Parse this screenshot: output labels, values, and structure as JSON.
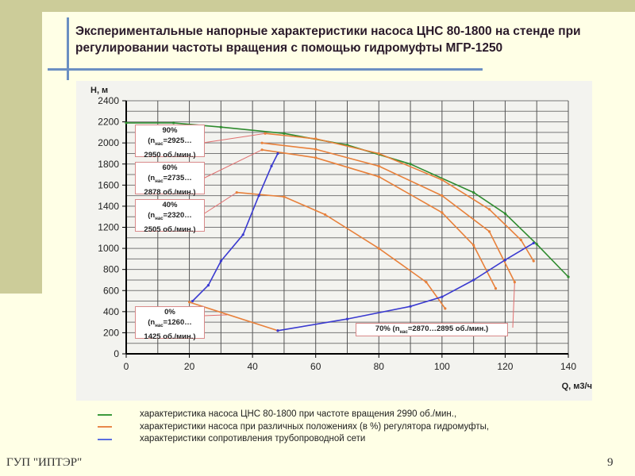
{
  "slide": {
    "title": "Экспериментальные напорные характеристики насоса ЦНС 80-1800 на стенде при регулировании частоты вращения с помощью гидромуфты МГР-1250",
    "footer": "ГУП \"ИПТЭР\"",
    "page_number": "9"
  },
  "legend": [
    {
      "label": "характеристика насоса ЦНС 80-1800 при частоте вращения 2990 об./мин.,",
      "color": "#3c9a3c"
    },
    {
      "label": "характеристики насоса при различных положениях (в %) регулятора гидромуфты,",
      "color": "#e8884a"
    },
    {
      "label": "характеристики сопротивления трубопроводной сети",
      "color": "#5a6ee0"
    }
  ],
  "annotations": [
    {
      "pct": "90%",
      "n": "n",
      "sub": "нас",
      "range1": "=2925…",
      "range2": "2950 об./мин.)"
    },
    {
      "pct": "60%",
      "n": "n",
      "sub": "нас",
      "range1": "=2735…",
      "range2": "2878 об./мин.)"
    },
    {
      "pct": "40%",
      "n": "n",
      "sub": "нас",
      "range1": "=2320…",
      "range2": "2505 об./мин.)"
    },
    {
      "pct": "0%",
      "n": "n",
      "sub": "нас",
      "range1": "=1260…",
      "range2": "1425 об./мин.)"
    },
    {
      "pct": "70%",
      "n": "n",
      "sub": "нас",
      "range1": "=2870…2895 об./мин.)",
      "range2": ""
    }
  ],
  "chart_data": {
    "type": "line",
    "title": "",
    "xlabel": "Q, м3/ч",
    "ylabel": "H, м",
    "xlim": [
      0,
      140
    ],
    "ylim": [
      0,
      2400
    ],
    "xticks": [
      0,
      20,
      40,
      60,
      80,
      100,
      120,
      140
    ],
    "yticks": [
      0,
      200,
      400,
      600,
      800,
      1000,
      1200,
      1400,
      1600,
      1800,
      2000,
      2200,
      2400
    ],
    "grid": true,
    "series": [
      {
        "name": "2990 об./мин.",
        "color": "#2e8b2e",
        "points": [
          [
            0,
            2190
          ],
          [
            15,
            2190
          ],
          [
            30,
            2150
          ],
          [
            50,
            2090
          ],
          [
            70,
            1980
          ],
          [
            90,
            1800
          ],
          [
            110,
            1530
          ],
          [
            120,
            1330
          ],
          [
            130,
            1040
          ],
          [
            140,
            730
          ]
        ]
      },
      {
        "name": "90%",
        "color": "#e8803a",
        "points": [
          [
            44,
            2090
          ],
          [
            60,
            2040
          ],
          [
            80,
            1900
          ],
          [
            100,
            1650
          ],
          [
            115,
            1370
          ],
          [
            125,
            1080
          ],
          [
            129,
            880
          ]
        ]
      },
      {
        "name": "70%",
        "color": "#e8803a",
        "points": [
          [
            43,
            2000
          ],
          [
            60,
            1940
          ],
          [
            80,
            1780
          ],
          [
            100,
            1500
          ],
          [
            115,
            1160
          ],
          [
            123,
            680
          ]
        ]
      },
      {
        "name": "60%",
        "color": "#e8803a",
        "points": [
          [
            43,
            1935
          ],
          [
            60,
            1860
          ],
          [
            80,
            1680
          ],
          [
            100,
            1340
          ],
          [
            110,
            1030
          ],
          [
            117,
            620
          ]
        ]
      },
      {
        "name": "40%",
        "color": "#e8803a",
        "points": [
          [
            35,
            1530
          ],
          [
            50,
            1490
          ],
          [
            63,
            1320
          ],
          [
            80,
            1000
          ],
          [
            95,
            680
          ],
          [
            101,
            430
          ]
        ]
      },
      {
        "name": "0%",
        "color": "#e8803a",
        "points": [
          [
            20,
            490
          ],
          [
            48,
            220
          ]
        ]
      },
      {
        "name": "сеть 1",
        "color": "#3a3ad0",
        "points": [
          [
            21,
            500
          ],
          [
            26,
            650
          ],
          [
            30,
            880
          ],
          [
            37,
            1130
          ],
          [
            42,
            1500
          ],
          [
            46,
            1780
          ],
          [
            48,
            1900
          ]
        ]
      },
      {
        "name": "сеть 2",
        "color": "#3a3ad0",
        "points": [
          [
            48,
            220
          ],
          [
            70,
            330
          ],
          [
            90,
            450
          ],
          [
            100,
            540
          ],
          [
            110,
            700
          ],
          [
            120,
            890
          ],
          [
            129,
            1050
          ]
        ]
      }
    ]
  }
}
